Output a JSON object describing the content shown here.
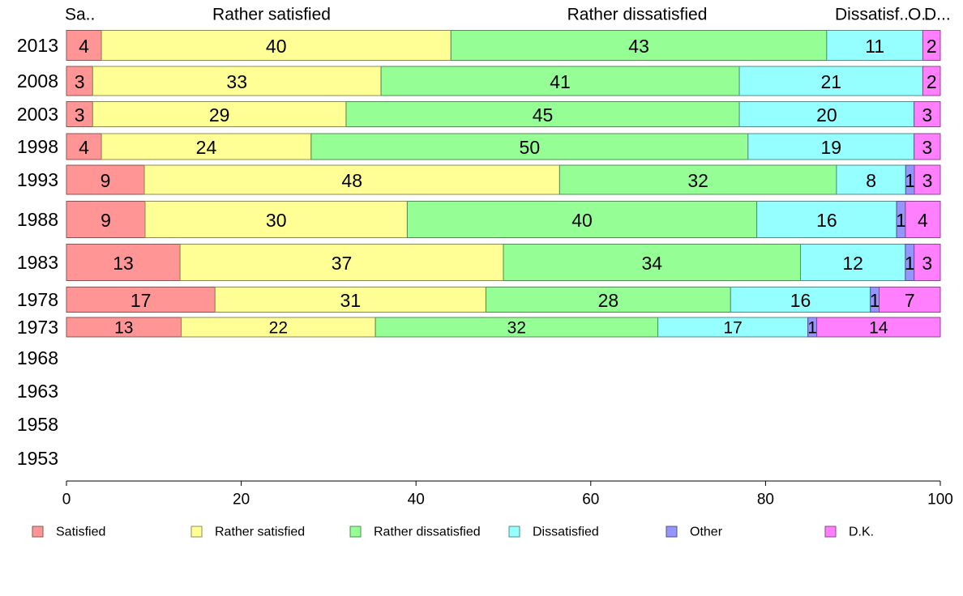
{
  "chart_data": {
    "type": "bar",
    "orientation": "horizontal",
    "stacked": true,
    "categories": [
      "2013",
      "2008",
      "2003",
      "1998",
      "1993",
      "1988",
      "1983",
      "1978",
      "1973",
      "1968",
      "1963",
      "1958",
      "1953"
    ],
    "series": [
      {
        "name": "Satisfied",
        "color": "#ff9595",
        "values": [
          4,
          3,
          3,
          4,
          9,
          9,
          13,
          17,
          13,
          null,
          null,
          null,
          null
        ]
      },
      {
        "name": "Rather satisfied",
        "color": "#ffff95",
        "values": [
          40,
          33,
          29,
          24,
          48,
          30,
          37,
          31,
          22,
          null,
          null,
          null,
          null
        ]
      },
      {
        "name": "Rather dissatisfied",
        "color": "#95ff95",
        "values": [
          43,
          41,
          45,
          50,
          32,
          40,
          34,
          28,
          32,
          null,
          null,
          null,
          null
        ]
      },
      {
        "name": "Dissatisfied",
        "color": "#95ffff",
        "values": [
          11,
          21,
          20,
          19,
          8,
          16,
          12,
          16,
          17,
          null,
          null,
          null,
          null
        ]
      },
      {
        "name": "Other",
        "color": "#9595ff",
        "values": [
          0,
          0,
          0,
          0,
          1,
          1,
          1,
          1,
          1,
          null,
          null,
          null,
          null
        ]
      },
      {
        "name": "D.K.",
        "color": "#ff7fff",
        "values": [
          2,
          2,
          3,
          3,
          3,
          4,
          3,
          7,
          14,
          null,
          null,
          null,
          null
        ]
      }
    ],
    "top_labels": [
      "Sa..",
      "Rather satisfied",
      "Rather dissatisfied",
      "Dissatisf..",
      "O..",
      "D..."
    ],
    "xlim": [
      0,
      100
    ],
    "x_ticks": [
      "0",
      "20",
      "40",
      "60",
      "80",
      "100"
    ],
    "legend_position": "bottom",
    "grid": false
  }
}
